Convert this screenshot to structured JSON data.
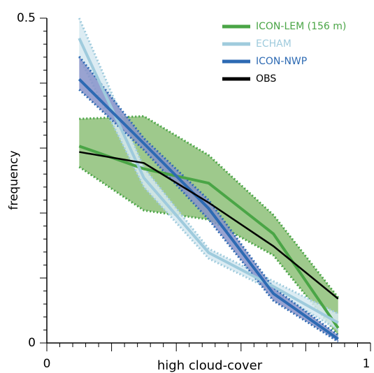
{
  "chart_data": {
    "type": "line",
    "x_label": "high cloud-cover",
    "y_label": "frequency",
    "x": [
      0.1,
      0.3,
      0.5,
      0.7,
      0.9
    ],
    "xlim": [
      0,
      1
    ],
    "xticks": [
      0,
      1
    ],
    "ylim": [
      0,
      0.5
    ],
    "yticks": [
      0,
      0.5
    ],
    "legend": "upper right",
    "series": [
      {
        "name": "ICON-LEM (156 m)",
        "color": "#4aa546",
        "band_color": "#8dbf78",
        "values": [
          0.303,
          0.268,
          0.246,
          0.168,
          0.023
        ],
        "lower": [
          0.271,
          0.204,
          0.19,
          0.135,
          0.012
        ],
        "upper": [
          0.345,
          0.349,
          0.289,
          0.197,
          0.07
        ]
      },
      {
        "name": "ECHAM",
        "color": "#9fcbdd",
        "band_color": "#d6e9f1",
        "values": [
          0.469,
          0.254,
          0.139,
          0.087,
          0.031
        ],
        "lower": [
          0.44,
          0.24,
          0.13,
          0.08,
          0.02
        ],
        "upper": [
          0.5,
          0.27,
          0.145,
          0.095,
          0.045
        ]
      },
      {
        "name": "ICON-NWP",
        "color": "#2d6ab3",
        "band_color": "#8793c9",
        "values": [
          0.406,
          0.307,
          0.207,
          0.076,
          0.006
        ],
        "lower": [
          0.39,
          0.297,
          0.19,
          0.065,
          0.002
        ],
        "upper": [
          0.441,
          0.315,
          0.22,
          0.085,
          0.012
        ]
      },
      {
        "name": "OBS",
        "color": "#000000",
        "values": [
          0.294,
          0.277,
          0.216,
          0.149,
          0.068
        ]
      }
    ]
  }
}
